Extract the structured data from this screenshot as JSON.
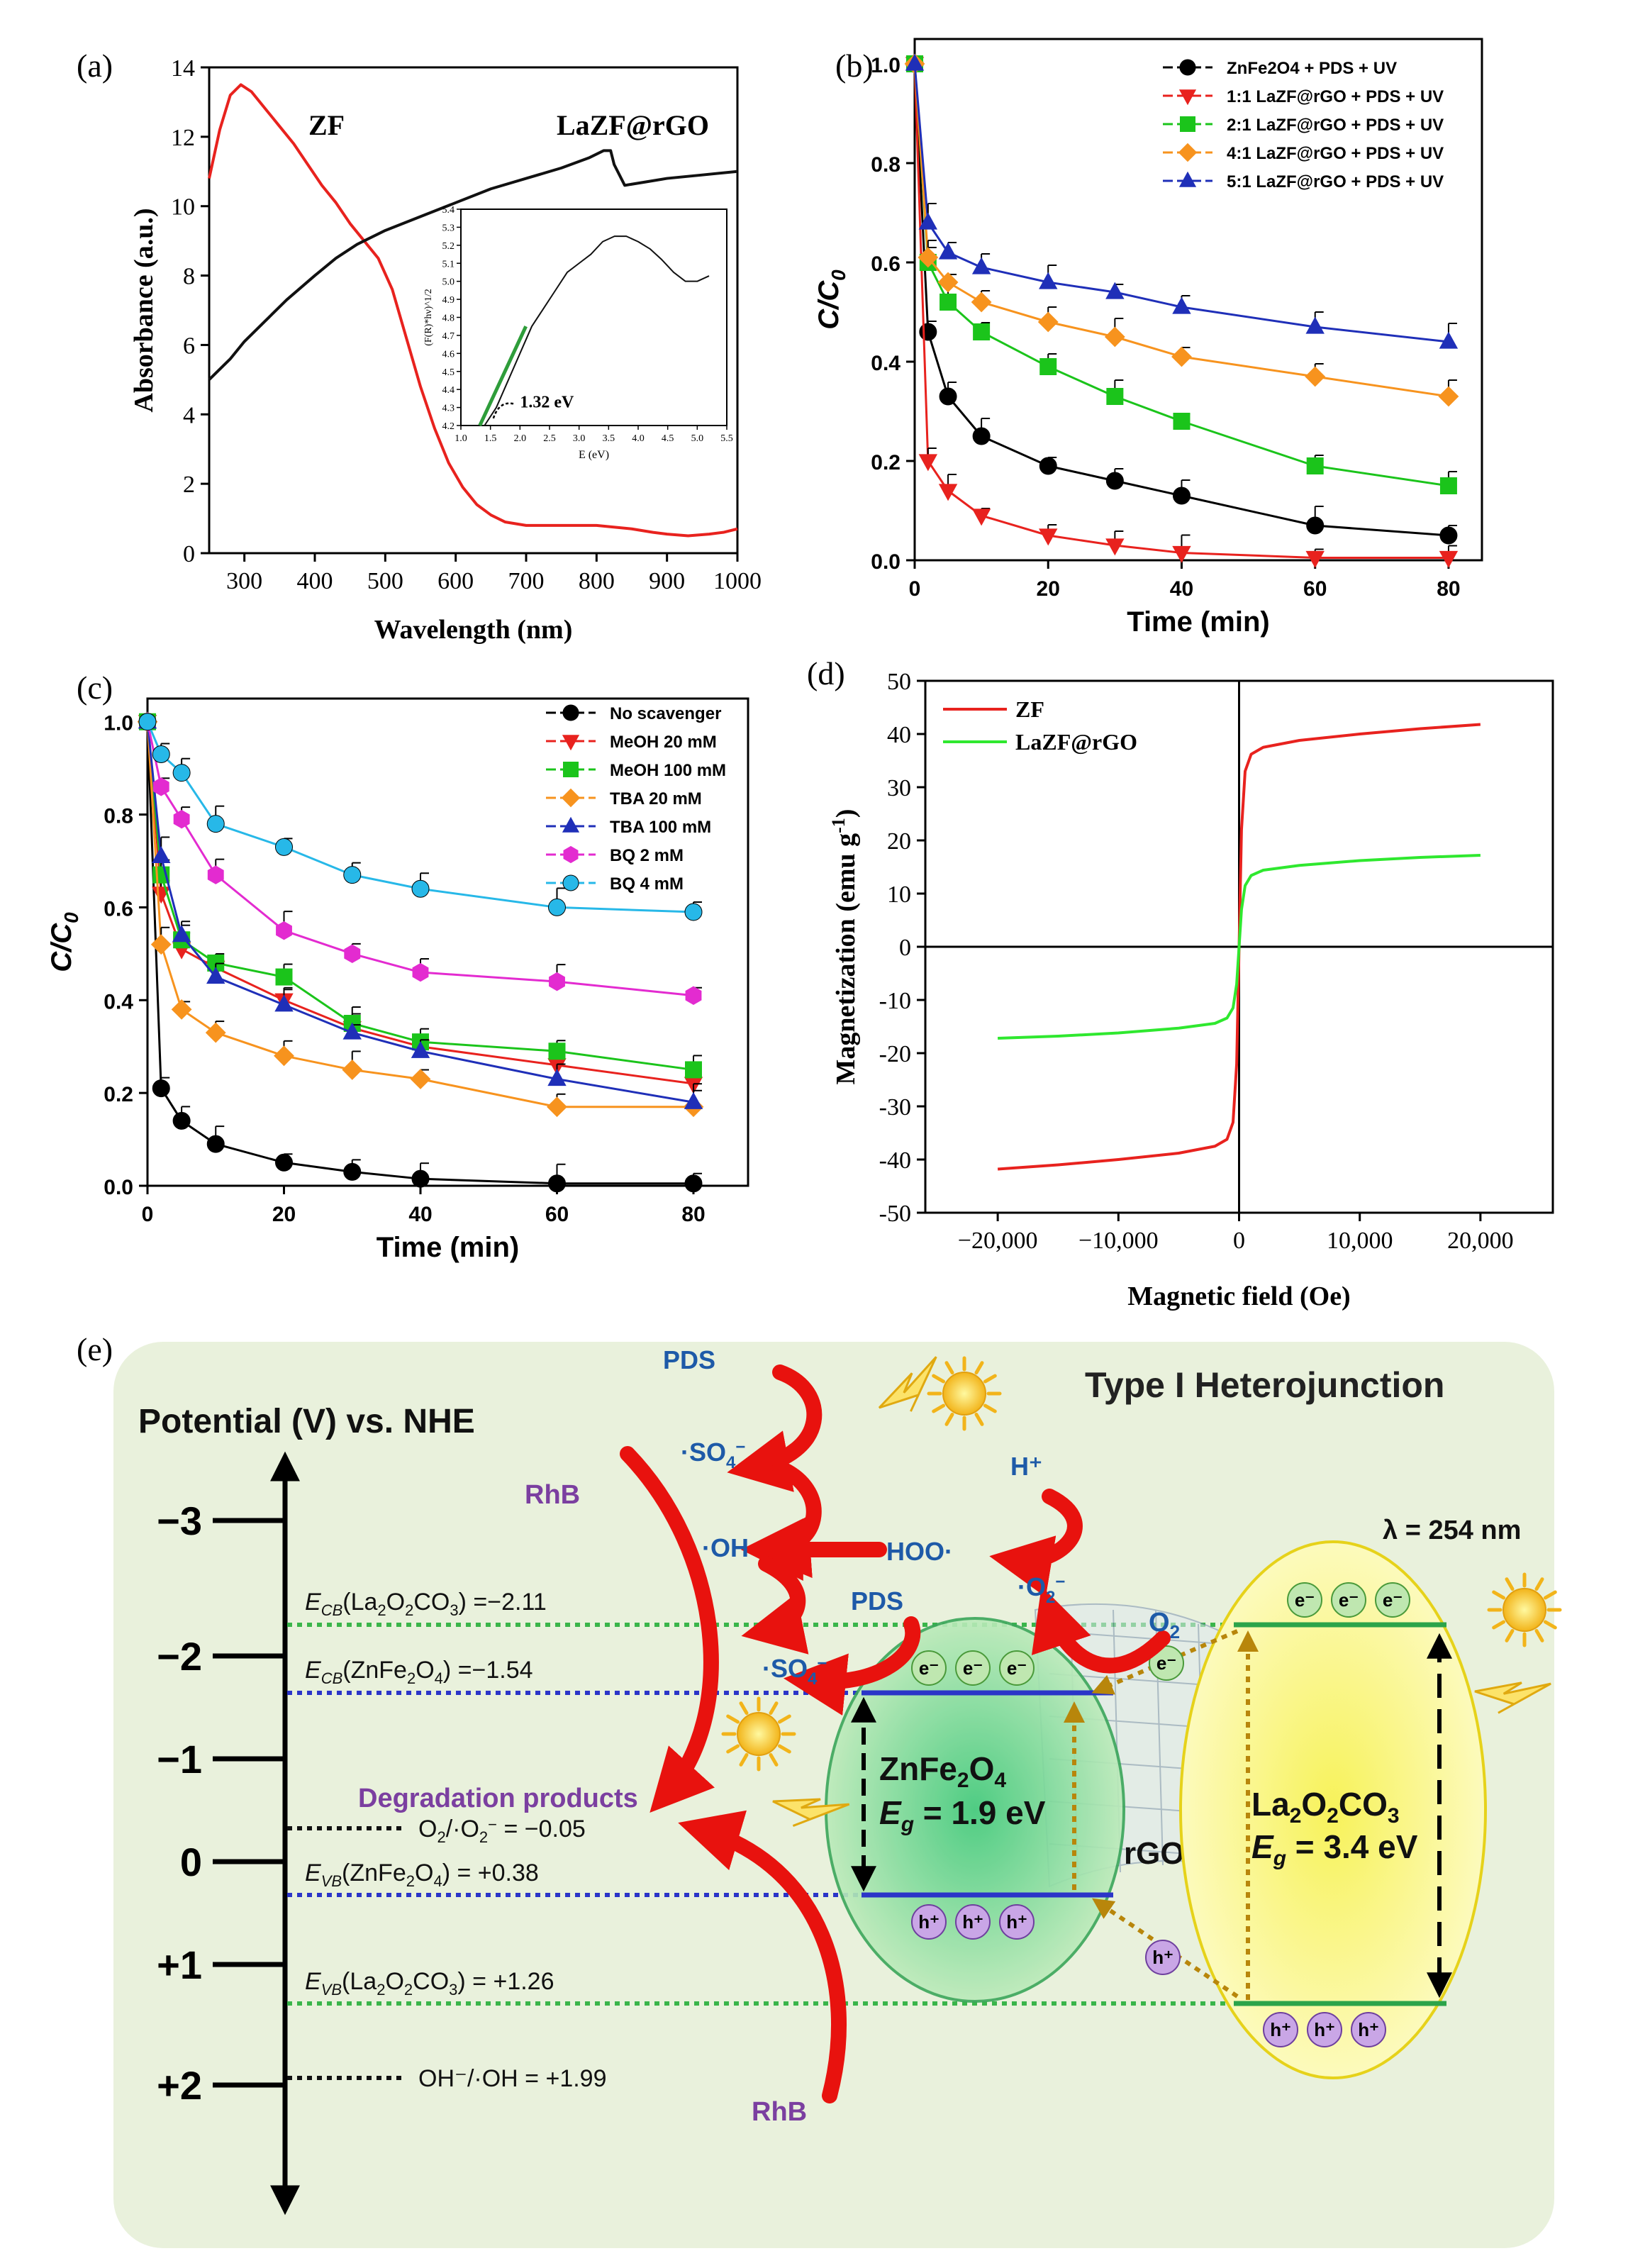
{
  "panels": {
    "a": "(a)",
    "b": "(b)",
    "c": "(c)",
    "d": "(d)",
    "e": "(e)"
  },
  "chart_data": [
    {
      "panel": "a",
      "type": "line",
      "xlabel": "Wavelength (nm)",
      "ylabel": "Absorbance (a.u.)",
      "xlim": [
        250,
        1000
      ],
      "ylim": [
        0,
        14
      ],
      "xticks": [
        300,
        400,
        500,
        600,
        700,
        800,
        900,
        1000
      ],
      "yticks": [
        0,
        2,
        4,
        6,
        8,
        10,
        12,
        14
      ],
      "grid": false,
      "series": [
        {
          "name": "ZF",
          "color": "#e8221e",
          "x": [
            250,
            265,
            280,
            295,
            310,
            330,
            350,
            370,
            390,
            410,
            430,
            450,
            470,
            490,
            510,
            530,
            550,
            570,
            590,
            610,
            630,
            650,
            670,
            700,
            750,
            800,
            850,
            880,
            900,
            930,
            960,
            980,
            1000
          ],
          "y": [
            10.8,
            12.2,
            13.2,
            13.5,
            13.3,
            12.8,
            12.3,
            11.8,
            11.2,
            10.6,
            10.1,
            9.5,
            9.0,
            8.5,
            7.6,
            6.2,
            4.8,
            3.6,
            2.6,
            1.9,
            1.4,
            1.1,
            0.9,
            0.8,
            0.8,
            0.8,
            0.7,
            0.6,
            0.55,
            0.5,
            0.55,
            0.6,
            0.7
          ]
        },
        {
          "name": "LaZF@rGO",
          "color": "#111111",
          "x": [
            250,
            280,
            300,
            330,
            360,
            400,
            430,
            460,
            500,
            550,
            600,
            650,
            700,
            750,
            790,
            810,
            820,
            825,
            840,
            870,
            900,
            950,
            1000
          ],
          "y": [
            5.0,
            5.6,
            6.1,
            6.7,
            7.3,
            8.0,
            8.5,
            8.9,
            9.3,
            9.7,
            10.1,
            10.5,
            10.8,
            11.1,
            11.4,
            11.6,
            11.6,
            11.2,
            10.6,
            10.7,
            10.8,
            10.9,
            11.0
          ]
        }
      ],
      "inset": {
        "xlabel": "E (eV)",
        "ylabel": "(F(R)*hν)^1/2",
        "xlim": [
          1.0,
          5.5
        ],
        "ylim": [
          4.2,
          5.4
        ],
        "xticks": [
          1.0,
          1.5,
          2.0,
          2.5,
          3.0,
          3.5,
          4.0,
          4.5,
          5.0,
          5.5
        ],
        "yticks": [
          4.2,
          4.3,
          4.4,
          4.5,
          4.6,
          4.7,
          4.8,
          4.9,
          5.0,
          5.1,
          5.2,
          5.3,
          5.4
        ],
        "annotation": "1.32 eV",
        "curve": {
          "x": [
            1.4,
            1.6,
            1.8,
            2.0,
            2.2,
            2.4,
            2.6,
            2.8,
            3.0,
            3.2,
            3.4,
            3.6,
            3.8,
            4.0,
            4.2,
            4.4,
            4.6,
            4.8,
            5.0,
            5.2
          ],
          "y": [
            4.2,
            4.3,
            4.45,
            4.6,
            4.75,
            4.85,
            4.95,
            5.05,
            5.1,
            5.15,
            5.22,
            5.25,
            5.25,
            5.22,
            5.18,
            5.12,
            5.05,
            5.0,
            5.0,
            5.03
          ]
        },
        "fit": {
          "x": [
            1.32,
            2.1
          ],
          "y": [
            4.2,
            4.75
          ]
        }
      }
    },
    {
      "panel": "b",
      "type": "line",
      "xlabel": "Time (min)",
      "ylabel": "C/C0",
      "xlim": [
        0,
        85
      ],
      "ylim": [
        0,
        1.05
      ],
      "xticks": [
        0,
        20,
        40,
        60,
        80
      ],
      "yticks": [
        0.0,
        0.2,
        0.4,
        0.6,
        0.8,
        1.0
      ],
      "legend": "top-right",
      "x": [
        0,
        2,
        5,
        10,
        20,
        30,
        40,
        60,
        80
      ],
      "series": [
        {
          "name": "ZnFe2O4 + PDS + UV",
          "color": "#000000",
          "marker": "circle",
          "values": [
            1.0,
            0.46,
            0.33,
            0.25,
            0.19,
            0.16,
            0.13,
            0.07,
            0.05
          ]
        },
        {
          "name": "1:1 LaZF@rGO + PDS + UV",
          "color": "#e8221e",
          "marker": "triangle-down",
          "values": [
            1.0,
            0.2,
            0.14,
            0.09,
            0.05,
            0.03,
            0.015,
            0.005,
            0.005
          ]
        },
        {
          "name": "2:1 LaZF@rGO + PDS + UV",
          "color": "#1bc41b",
          "marker": "square",
          "values": [
            1.0,
            0.6,
            0.52,
            0.46,
            0.39,
            0.33,
            0.28,
            0.19,
            0.15
          ]
        },
        {
          "name": "4:1 LaZF@rGO + PDS + UV",
          "color": "#f7931e",
          "marker": "diamond",
          "values": [
            1.0,
            0.61,
            0.56,
            0.52,
            0.48,
            0.45,
            0.41,
            0.37,
            0.33
          ]
        },
        {
          "name": "5:1 LaZF@rGO + PDS + UV",
          "color": "#1f2fb8",
          "marker": "triangle-up",
          "values": [
            1.0,
            0.68,
            0.62,
            0.59,
            0.56,
            0.54,
            0.51,
            0.47,
            0.44
          ]
        }
      ]
    },
    {
      "panel": "c",
      "type": "line",
      "xlabel": "Time (min)",
      "ylabel": "C/C0",
      "xlim": [
        0,
        88
      ],
      "ylim": [
        0,
        1.05
      ],
      "xticks": [
        0,
        20,
        40,
        60,
        80
      ],
      "yticks": [
        0.0,
        0.2,
        0.4,
        0.6,
        0.8,
        1.0
      ],
      "legend": "top-right",
      "x": [
        0,
        2,
        5,
        10,
        20,
        30,
        40,
        60,
        80
      ],
      "series": [
        {
          "name": "No scavenger",
          "color": "#000000",
          "marker": "circle",
          "values": [
            1.0,
            0.21,
            0.14,
            0.09,
            0.05,
            0.03,
            0.015,
            0.005,
            0.005
          ]
        },
        {
          "name": "MeOH 20 mM",
          "color": "#e8221e",
          "marker": "triangle-down",
          "values": [
            1.0,
            0.63,
            0.51,
            0.47,
            0.4,
            0.34,
            0.3,
            0.26,
            0.22
          ]
        },
        {
          "name": "MeOH 100 mM",
          "color": "#1bc41b",
          "marker": "square",
          "values": [
            1.0,
            0.67,
            0.53,
            0.48,
            0.45,
            0.35,
            0.31,
            0.29,
            0.25
          ]
        },
        {
          "name": "TBA 20 mM",
          "color": "#f7931e",
          "marker": "diamond",
          "values": [
            1.0,
            0.52,
            0.38,
            0.33,
            0.28,
            0.25,
            0.23,
            0.17,
            0.17
          ]
        },
        {
          "name": "TBA 100 mM",
          "color": "#1f2fb8",
          "marker": "triangle-up",
          "values": [
            1.0,
            0.71,
            0.54,
            0.45,
            0.39,
            0.33,
            0.29,
            0.23,
            0.18
          ]
        },
        {
          "name": "BQ 2 mM",
          "color": "#e32bd0",
          "marker": "hexagon",
          "values": [
            1.0,
            0.86,
            0.79,
            0.67,
            0.55,
            0.5,
            0.46,
            0.44,
            0.41
          ]
        },
        {
          "name": "BQ 4 mM",
          "color": "#27b8e8",
          "marker": "circle",
          "values": [
            1.0,
            0.93,
            0.89,
            0.78,
            0.73,
            0.67,
            0.64,
            0.6,
            0.59
          ]
        }
      ]
    },
    {
      "panel": "d",
      "type": "line",
      "xlabel": "Magnetic field (Oe)",
      "ylabel": "Magnetization (emu g-1)",
      "xlim": [
        -26000,
        26000
      ],
      "ylim": [
        -50,
        50
      ],
      "xticks": [
        -20000,
        -10000,
        0,
        10000,
        20000
      ],
      "xtick_labels": [
        "−20,000",
        "−10,000",
        "0",
        "10,000",
        "20,000"
      ],
      "yticks": [
        -50,
        -40,
        -30,
        -20,
        -10,
        0,
        10,
        20,
        30,
        40,
        50
      ],
      "legend": "top-left",
      "series": [
        {
          "name": "ZF",
          "color": "#e8221e",
          "x": [
            -20000,
            -15000,
            -10000,
            -5000,
            -2000,
            -1000,
            -500,
            -200,
            0,
            200,
            500,
            1000,
            2000,
            5000,
            10000,
            15000,
            20000
          ],
          "y": [
            -41.8,
            -41.0,
            -40.0,
            -38.8,
            -37.5,
            -36.2,
            -33.0,
            -22.0,
            0,
            22.0,
            33.0,
            36.2,
            37.5,
            38.8,
            40.0,
            41.0,
            41.8
          ]
        },
        {
          "name": "LaZF@rGO",
          "color": "#2fe82f",
          "x": [
            -20000,
            -15000,
            -10000,
            -5000,
            -2000,
            -1000,
            -500,
            -200,
            0,
            200,
            500,
            1000,
            2000,
            5000,
            10000,
            15000,
            20000
          ],
          "y": [
            -17.2,
            -16.8,
            -16.2,
            -15.3,
            -14.4,
            -13.4,
            -11.5,
            -7.0,
            0,
            7.0,
            11.5,
            13.4,
            14.4,
            15.3,
            16.2,
            16.8,
            17.2
          ]
        }
      ]
    }
  ],
  "texts": {
    "a_zf": "ZF",
    "a_lazf": "LaZF@rGO",
    "e_title": "Type I Heterojunction",
    "e_axis": "Potential (V) vs. NHE",
    "e_lambda": "λ = 254 nm",
    "e_ticks": [
      "−3",
      "−2",
      "−1",
      "0",
      "+1",
      "+2"
    ],
    "e_ecb_la": "=−2.11",
    "e_ecb_zn": "=−1.54",
    "e_o2": "= −0.05",
    "e_evb_zn": "= +0.38",
    "e_evb_la": "= +1.26",
    "e_oh": "OH⁻/·OH = +1.99",
    "e_pds": "PDS",
    "e_pds2": "PDS",
    "e_rhb1": "RhB",
    "e_rhb2": "RhB",
    "e_deg": "Degradation products",
    "e_rgo": "rGO",
    "e_hplus": "H⁺",
    "e_hoo": "HOO·",
    "e_o2label": "O",
    "e_eg_zn": "= 1.9 eV",
    "e_eg_la": "= 3.4 eV",
    "e_eminus": "e⁻",
    "e_hplus_hole": "h⁺"
  }
}
